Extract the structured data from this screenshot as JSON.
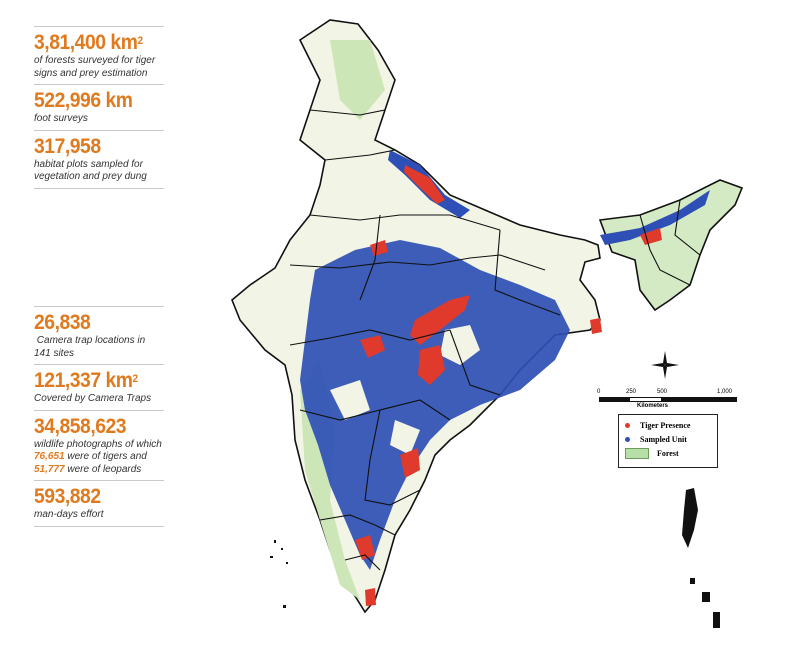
{
  "stats_top": [
    {
      "value": "3,81,400 km",
      "sup": "2",
      "desc": "of forests surveyed for tiger signs and prey estimation"
    },
    {
      "value": "522,996 km",
      "sup": "",
      "desc": "foot surveys"
    },
    {
      "value": "317,958",
      "sup": "",
      "desc": "habitat plots sampled for vegetation and prey dung"
    }
  ],
  "stats_bottom": [
    {
      "value": "26,838",
      "sup": "",
      "desc": " Camera trap locations in 141 sites"
    },
    {
      "value": "121,337 km",
      "sup": "2",
      "desc": "Covered by Camera Traps"
    },
    {
      "value": "34,858,623",
      "sup": "",
      "desc_parts": [
        "wildlife photographs of which ",
        "76,651",
        " were of tigers and ",
        "51,777",
        " were of leopards"
      ]
    },
    {
      "value": "593,882",
      "sup": "",
      "desc": "man-days effort"
    }
  ],
  "scale_bar": {
    "ticks": [
      "0",
      "250",
      "500",
      "1,000"
    ],
    "unit": "Kilometers"
  },
  "legend": [
    {
      "label": "Tiger Presence",
      "color": "#e03a2c",
      "type": "dot"
    },
    {
      "label": "Sampled Unit",
      "color": "#2e4fb5",
      "type": "dot"
    },
    {
      "label": "Forest",
      "color": "#b9dfa9",
      "type": "swatch"
    }
  ],
  "colors": {
    "accent": "#e07a1f",
    "land": "#f2f5e6",
    "forest": "#c8e4b4",
    "sampled": "#2e4fb5",
    "tiger": "#e03a2c"
  }
}
